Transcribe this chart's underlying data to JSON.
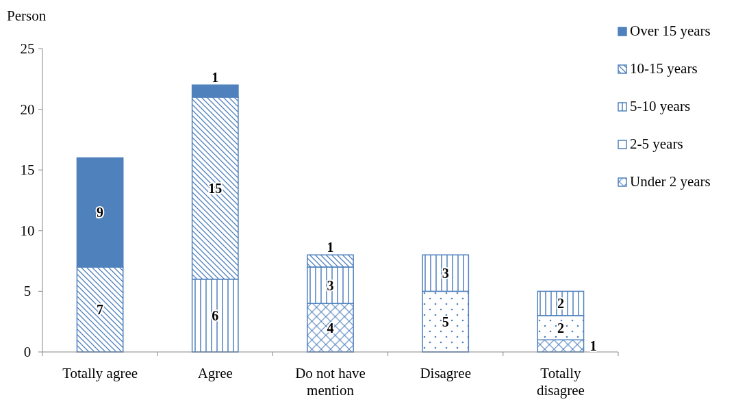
{
  "chart_data": {
    "type": "bar",
    "stacked": true,
    "ylabel": "Person",
    "categories": [
      "Totally agree",
      "Agree",
      "Do not have mention",
      "Disagree",
      "Totally disagree"
    ],
    "series": [
      {
        "name": "Under 2 years",
        "color": "#4f81bd",
        "values": [
          null,
          null,
          4,
          null,
          1
        ]
      },
      {
        "name": "2-5 years",
        "color": "#4f81bd",
        "values": [
          null,
          null,
          null,
          5,
          2
        ]
      },
      {
        "name": "5-10 years",
        "color": "#4f81bd",
        "values": [
          null,
          6,
          3,
          3,
          2
        ]
      },
      {
        "name": "10-15 years",
        "color": "#4f81bd",
        "values": [
          7,
          15,
          1,
          null,
          null
        ]
      },
      {
        "name": "Over 15 years",
        "color": "#4f81bd",
        "values": [
          9,
          1,
          null,
          null,
          null
        ]
      }
    ],
    "ylim": [
      0,
      25
    ],
    "yticks": [
      0,
      5,
      10,
      15,
      20,
      25
    ],
    "grid": false,
    "legend": "right",
    "data_labels": true
  }
}
